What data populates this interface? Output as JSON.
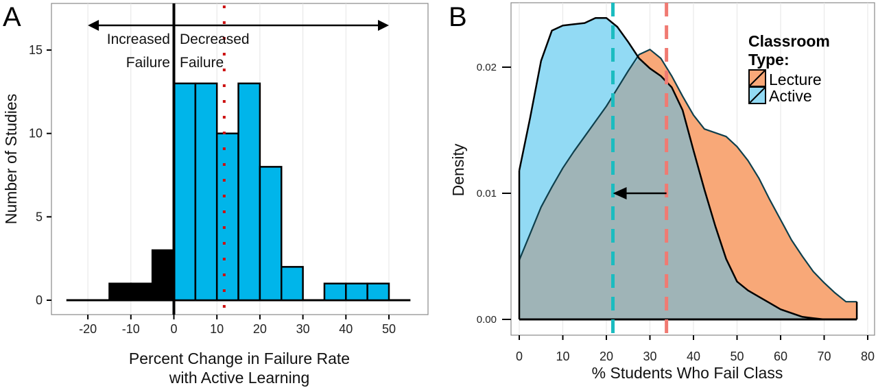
{
  "chart_data": [
    {
      "panel_label": "A",
      "type": "bar",
      "xlabel": [
        "Percent Change in Failure Rate",
        "with Active Learning"
      ],
      "ylabel": "Number of Studies",
      "xlim": [
        -25,
        55
      ],
      "ylim": [
        0,
        17.5
      ],
      "xticks": [
        -20,
        -10,
        0,
        10,
        20,
        30,
        40,
        50
      ],
      "yticks": [
        0,
        5,
        10,
        15
      ],
      "grid": "vertical",
      "bin_width": 5,
      "bins": [
        {
          "start": -15,
          "count": 1,
          "color": "#000000"
        },
        {
          "start": -10,
          "count": 1,
          "color": "#000000"
        },
        {
          "start": -5,
          "count": 3,
          "color": "#000000"
        },
        {
          "start": 0,
          "count": 13,
          "color": "#00b5ea"
        },
        {
          "start": 5,
          "count": 13,
          "color": "#00b5ea"
        },
        {
          "start": 10,
          "count": 10,
          "color": "#00b5ea"
        },
        {
          "start": 15,
          "count": 13,
          "color": "#00b5ea"
        },
        {
          "start": 20,
          "count": 8,
          "color": "#00b5ea"
        },
        {
          "start": 25,
          "count": 2,
          "color": "#00b5ea"
        },
        {
          "start": 30,
          "count": 0,
          "color": "#00b5ea"
        },
        {
          "start": 35,
          "count": 1,
          "color": "#00b5ea"
        },
        {
          "start": 40,
          "count": 1,
          "color": "#00b5ea"
        },
        {
          "start": 45,
          "count": 1,
          "color": "#00b5ea"
        }
      ],
      "zero_line": 0,
      "mean_line": {
        "x": 11.7,
        "color": "#cc1111",
        "style": "dotted"
      },
      "double_arrow": {
        "from": -20,
        "to": 50
      },
      "annotations": {
        "left": [
          "Increased",
          "Failure"
        ],
        "right": [
          "Decreased",
          "Failure"
        ]
      }
    },
    {
      "panel_label": "B",
      "type": "area",
      "xlabel": "% Students Who Fail Class",
      "ylabel": "Density",
      "xlim": [
        -3,
        81
      ],
      "ylim": [
        -0.0012,
        0.025
      ],
      "xticks": [
        0,
        10,
        20,
        30,
        40,
        50,
        60,
        70,
        80
      ],
      "yticks": [
        "0.00",
        "0.01",
        "0.02"
      ],
      "grid": "vertical",
      "legend": {
        "title": [
          "Classroom",
          "Type:"
        ],
        "placement": "top-right"
      },
      "x": [
        0,
        2.5,
        5,
        7.5,
        10,
        12.5,
        15,
        17.5,
        20,
        22.5,
        25,
        27.5,
        30,
        32.5,
        35,
        37.5,
        40,
        42.5,
        45,
        47.5,
        50,
        52.5,
        55,
        57.5,
        60,
        62.5,
        65,
        67.5,
        70,
        72.5,
        75,
        77.5
      ],
      "series": [
        {
          "name": "Lecture",
          "color": "#f8a878",
          "values": [
            0.0047,
            0.0068,
            0.0089,
            0.0105,
            0.012,
            0.0133,
            0.0145,
            0.0157,
            0.0169,
            0.0183,
            0.0197,
            0.021,
            0.0214,
            0.0207,
            0.0193,
            0.0177,
            0.0162,
            0.0151,
            0.0148,
            0.0145,
            0.0137,
            0.0126,
            0.0112,
            0.0095,
            0.0079,
            0.0063,
            0.005,
            0.0038,
            0.0029,
            0.0021,
            0.0014,
            0.0014
          ],
          "mean": 33.8,
          "mean_color": "#f07a72"
        },
        {
          "name": "Active",
          "color": "#92daf4",
          "values": [
            0.0118,
            0.016,
            0.0205,
            0.0229,
            0.0233,
            0.0234,
            0.0235,
            0.0239,
            0.0239,
            0.0232,
            0.022,
            0.0207,
            0.0199,
            0.0193,
            0.0184,
            0.0166,
            0.0134,
            0.0103,
            0.0074,
            0.0048,
            0.003,
            0.0023,
            0.0018,
            0.0013,
            0.0008,
            0.0005,
            0.0002,
            0.0001,
            0,
            0,
            0,
            0
          ],
          "mean": 21.5,
          "mean_color": "#1bbcc0"
        }
      ],
      "overlap_color": "#9fb4b7",
      "arrow": {
        "from": 33.8,
        "to": 21.5,
        "y": 0.01
      }
    }
  ]
}
